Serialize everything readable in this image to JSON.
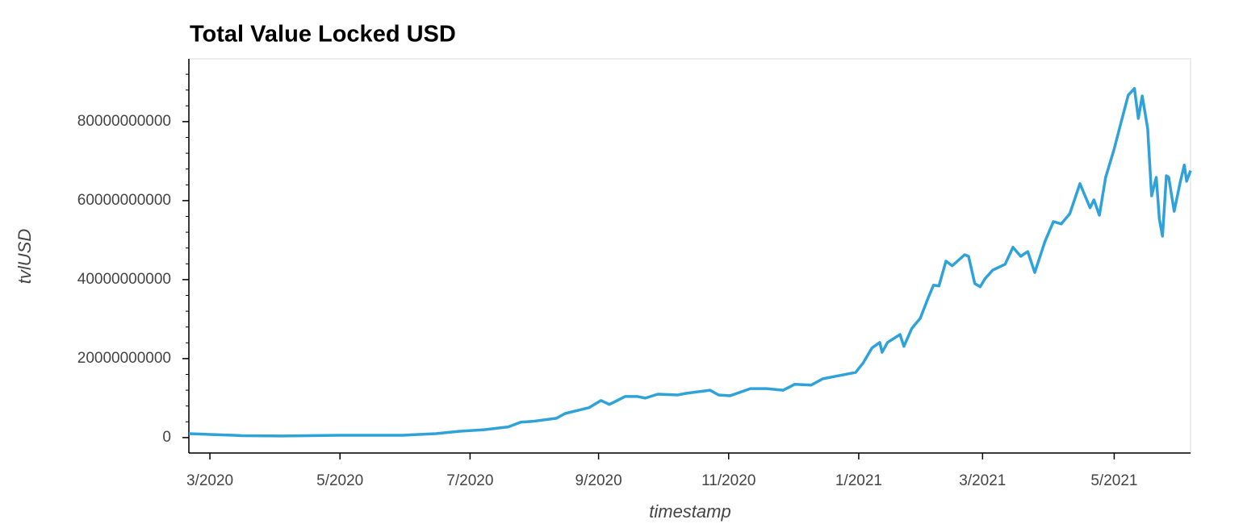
{
  "chart_data": {
    "type": "line",
    "title": "Total Value Locked USD",
    "x_label": "timestamp",
    "y_label": "tvlUSD",
    "x": [
      2020.14,
      2020.167,
      2020.198,
      2020.208,
      2020.26,
      2020.332,
      2020.415,
      2020.457,
      2020.488,
      2020.519,
      2020.55,
      2020.566,
      2020.581,
      2020.612,
      2020.623,
      2020.654,
      2020.669,
      2020.68,
      2020.7,
      2020.716,
      2020.726,
      2020.742,
      2020.768,
      2020.778,
      2020.809,
      2020.82,
      2020.835,
      2020.861,
      2020.882,
      2020.903,
      2020.918,
      2020.939,
      2020.954,
      2020.975,
      2020.996,
      2021.006,
      2021.017,
      2021.027,
      2021.03,
      2021.037,
      2021.053,
      2021.058,
      2021.068,
      2021.079,
      2021.089,
      2021.096,
      2021.103,
      2021.112,
      2021.12,
      2021.136,
      2021.141,
      2021.149,
      2021.156,
      2021.162,
      2021.172,
      2021.188,
      2021.198,
      2021.208,
      2021.217,
      2021.226,
      2021.239,
      2021.25,
      2021.26,
      2021.271,
      2021.284,
      2021.297,
      2021.302,
      2021.309,
      2021.317,
      2021.328,
      2021.336,
      2021.346,
      2021.354,
      2021.359,
      2021.364,
      2021.371,
      2021.376,
      2021.382,
      2021.386,
      2021.39,
      2021.395,
      2021.398,
      2021.405,
      2021.413,
      2021.418,
      2021.421,
      2021.426
    ],
    "series": [
      {
        "name": "tvlUSD",
        "color": "#30a2da",
        "values": [
          1000000000,
          800000000,
          600000000,
          500000000,
          400000000,
          600000000,
          600000000,
          1000000000,
          1600000000,
          2000000000,
          2700000000,
          3900000000,
          4100000000,
          4900000000,
          6100000000,
          7600000000,
          9400000000,
          8400000000,
          10400000000,
          10400000000,
          10000000000,
          11000000000,
          10800000000,
          11200000000,
          12000000000,
          10800000000,
          10600000000,
          12400000000,
          12400000000,
          12000000000,
          13500000000,
          13300000000,
          14900000000,
          15700000000,
          16500000000,
          19000000000,
          22700000000,
          24100000000,
          21600000000,
          24100000000,
          26100000000,
          23100000000,
          27600000000,
          30200000000,
          35300000000,
          38600000000,
          38400000000,
          44700000000,
          43500000000,
          46300000000,
          45900000000,
          39000000000,
          38200000000,
          40200000000,
          42400000000,
          43900000000,
          48200000000,
          45900000000,
          47100000000,
          41800000000,
          49600000000,
          54700000000,
          54100000000,
          56700000000,
          64300000000,
          58200000000,
          60200000000,
          56300000000,
          65900000000,
          73100000000,
          79200000000,
          86700000000,
          88400000000,
          80800000000,
          86500000000,
          78200000000,
          61200000000,
          65900000000,
          55300000000,
          51000000000,
          66300000000,
          65900000000,
          57300000000,
          64900000000,
          69000000000,
          64900000000,
          67600000000
        ]
      }
    ],
    "xlim": [
      2020.14,
      2021.426
    ],
    "xticks": [
      {
        "value": 2020.167,
        "label": "3/2020"
      },
      {
        "value": 2020.334,
        "label": "5/2020"
      },
      {
        "value": 2020.501,
        "label": "7/2020"
      },
      {
        "value": 2020.666,
        "label": "9/2020"
      },
      {
        "value": 2020.833,
        "label": "11/2020"
      },
      {
        "value": 2021.0,
        "label": "1/2021"
      },
      {
        "value": 2021.159,
        "label": "3/2021"
      },
      {
        "value": 2021.328,
        "label": "5/2021"
      }
    ],
    "ylim": [
      -3900000000,
      95900000000
    ],
    "yticks": [
      0,
      20000000000,
      40000000000,
      60000000000,
      80000000000
    ],
    "grid": false
  }
}
